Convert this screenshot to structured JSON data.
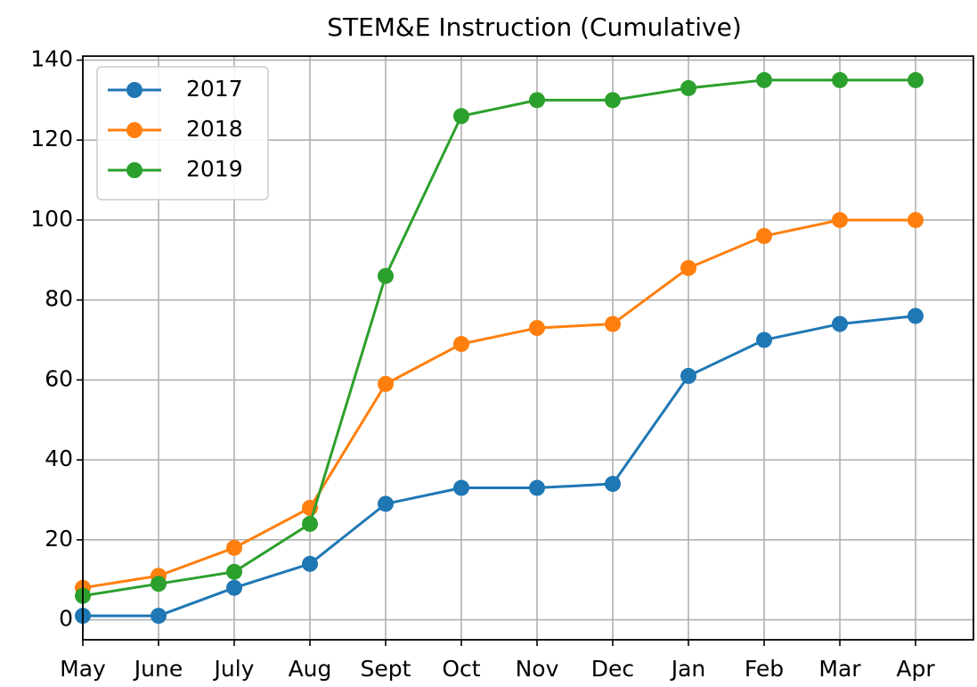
{
  "chart_data": {
    "type": "line",
    "title": "STEM&E Instruction (Cumulative)",
    "categories": [
      "May",
      "June",
      "July",
      "Aug",
      "Sept",
      "Oct",
      "Nov",
      "Dec",
      "Jan",
      "Feb",
      "Mar",
      "Apr"
    ],
    "series": [
      {
        "name": "2017",
        "color": "#1f77b4",
        "values": [
          1,
          1,
          8,
          14,
          29,
          33,
          33,
          34,
          61,
          70,
          74,
          76
        ]
      },
      {
        "name": "2018",
        "color": "#ff7f0e",
        "values": [
          8,
          11,
          18,
          28,
          59,
          69,
          73,
          74,
          88,
          96,
          100,
          100
        ]
      },
      {
        "name": "2019",
        "color": "#2ca02c",
        "values": [
          6,
          9,
          12,
          24,
          86,
          126,
          130,
          130,
          133,
          135,
          135,
          135
        ]
      }
    ],
    "ylim": [
      -5,
      141
    ],
    "yticks": [
      0,
      20,
      40,
      60,
      80,
      100,
      120,
      140
    ],
    "grid": true,
    "legend": "upper left"
  }
}
